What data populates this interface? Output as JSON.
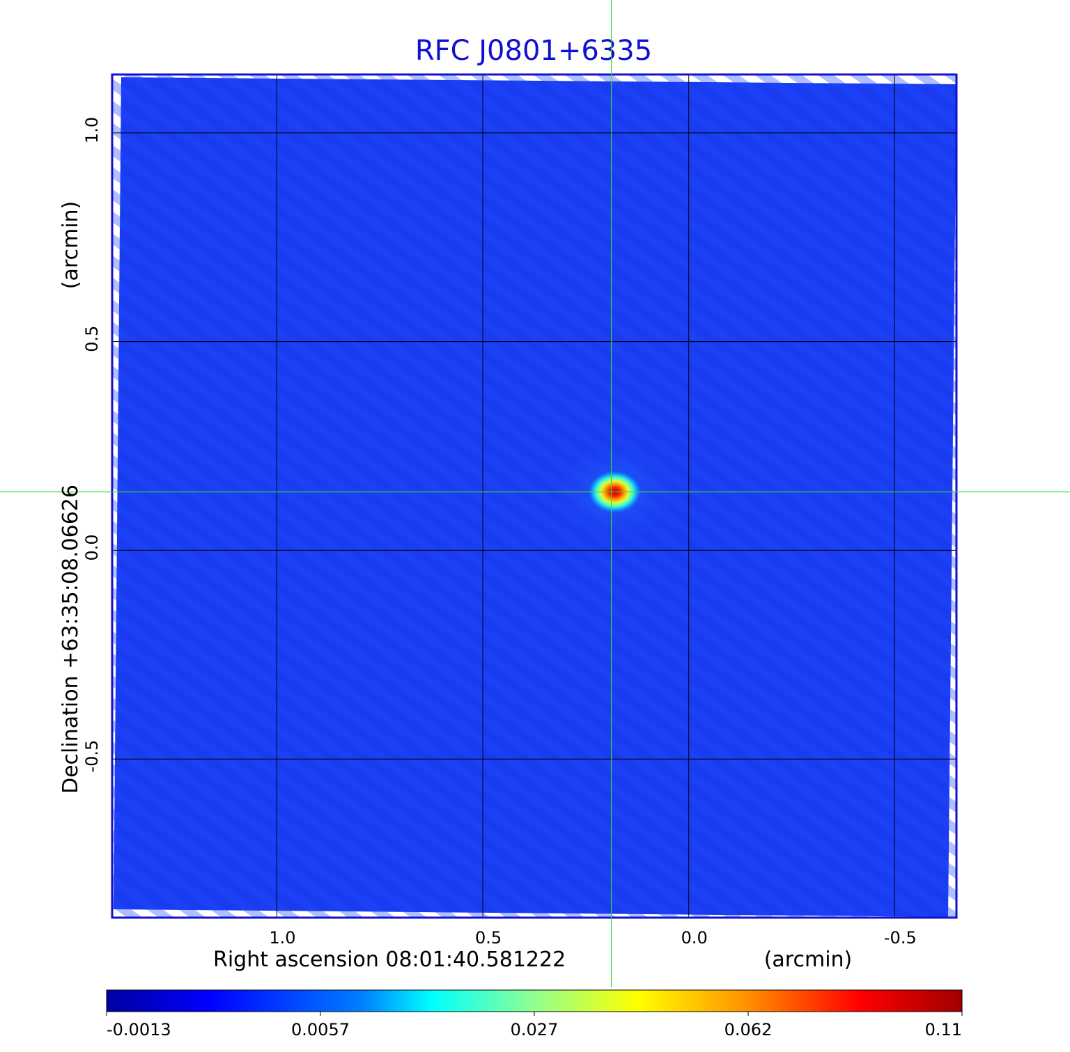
{
  "chart_data": {
    "type": "heatmap",
    "title": "RFC J0801+6335",
    "xlabel": "Right ascension  08:01:40.581222",
    "xunit": "(arcmin)",
    "ylabel": "Declination  +63:35:08.06626",
    "yunit": "(arcmin)",
    "xlim": [
      1.4,
      -0.65
    ],
    "ylim": [
      -0.88,
      1.14
    ],
    "x_ticks": [
      1.0,
      0.5,
      0.0,
      -0.5
    ],
    "x_tick_labels": [
      "1.0",
      "0.5",
      "0.0",
      "-0.5"
    ],
    "y_ticks": [
      1.0,
      0.5,
      0.0,
      -0.5
    ],
    "y_tick_labels": [
      "1.0",
      "0.5",
      "0.0",
      "-0.5"
    ],
    "grid": true,
    "colormap": "jet",
    "background_color": "#1a3cf0",
    "peak": {
      "x": 0.18,
      "y": 0.14
    },
    "crosshair": {
      "x": 0.188,
      "y": 0.14,
      "color": "#33dd33"
    },
    "colorbar": {
      "tick_labels": [
        "-0.0013",
        "0.0057",
        "0.027",
        "0.062",
        "0.11"
      ]
    }
  }
}
